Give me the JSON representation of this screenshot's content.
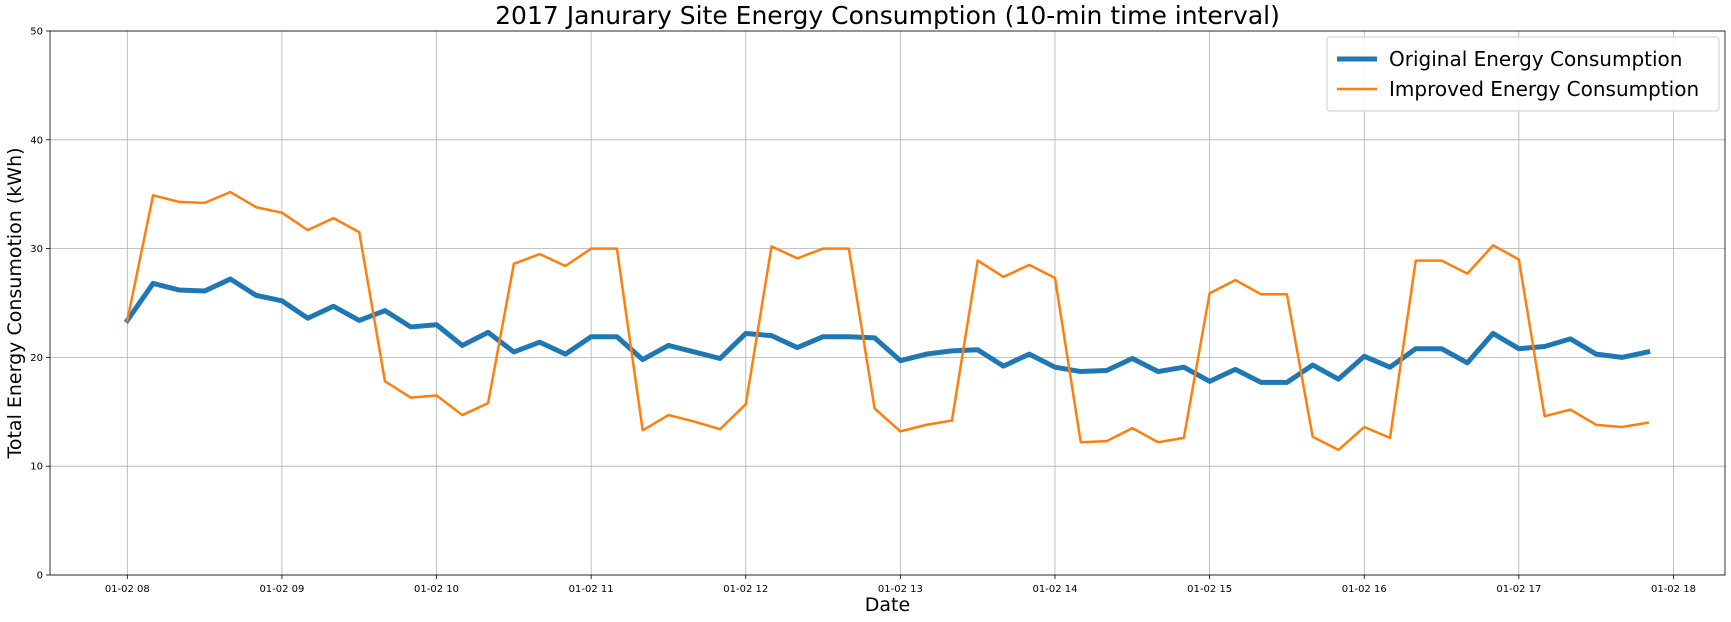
{
  "chart_data": {
    "type": "line",
    "title": "2017 Janurary Site Energy Consumption (10-min time interval)",
    "xlabel": "Date",
    "ylabel": "Total Energy Consumotion (kWh)",
    "ylim": [
      0,
      50
    ],
    "yticks": [
      0,
      10,
      20,
      30,
      40,
      50
    ],
    "xlim": [
      "01-02 07:30",
      "01-02 18:20"
    ],
    "xticks": [
      "01-02 08",
      "01-02 09",
      "01-02 10",
      "01-02 11",
      "01-02 12",
      "01-02 13",
      "01-02 14",
      "01-02 15",
      "01-02 16",
      "01-02 17",
      "01-02 18"
    ],
    "x_interval": "10-min",
    "x": [
      "01-02 08:00",
      "01-02 08:10",
      "01-02 08:20",
      "01-02 08:30",
      "01-02 08:40",
      "01-02 08:50",
      "01-02 09:00",
      "01-02 09:10",
      "01-02 09:20",
      "01-02 09:30",
      "01-02 09:40",
      "01-02 09:50",
      "01-02 10:00",
      "01-02 10:10",
      "01-02 10:20",
      "01-02 10:30",
      "01-02 10:40",
      "01-02 10:50",
      "01-02 11:00",
      "01-02 11:10",
      "01-02 11:20",
      "01-02 11:30",
      "01-02 11:40",
      "01-02 11:50",
      "01-02 12:00",
      "01-02 12:10",
      "01-02 12:20",
      "01-02 12:30",
      "01-02 12:40",
      "01-02 12:50",
      "01-02 13:00",
      "01-02 13:10",
      "01-02 13:20",
      "01-02 13:30",
      "01-02 13:40",
      "01-02 13:50",
      "01-02 14:00",
      "01-02 14:10",
      "01-02 14:20",
      "01-02 14:30",
      "01-02 14:40",
      "01-02 14:50",
      "01-02 15:00",
      "01-02 15:10",
      "01-02 15:20",
      "01-02 15:30",
      "01-02 15:40",
      "01-02 15:50",
      "01-02 16:00",
      "01-02 16:10",
      "01-02 16:20",
      "01-02 16:30",
      "01-02 16:40",
      "01-02 16:50",
      "01-02 17:00",
      "01-02 17:10",
      "01-02 17:20",
      "01-02 17:30",
      "01-02 17:40",
      "01-02 17:50"
    ],
    "grid": true,
    "legend_position": "top-right",
    "series": [
      {
        "name": "Original Energy Consumption",
        "color": "#1f77b4",
        "values": [
          23.4,
          26.8,
          26.2,
          26.1,
          27.2,
          25.7,
          25.2,
          23.6,
          24.7,
          23.4,
          24.3,
          22.8,
          23.0,
          21.1,
          22.3,
          20.5,
          21.4,
          20.3,
          21.9,
          21.9,
          19.8,
          21.1,
          20.5,
          19.9,
          22.2,
          22.0,
          20.9,
          21.9,
          21.9,
          21.8,
          19.7,
          20.3,
          20.6,
          20.7,
          19.2,
          20.3,
          19.1,
          18.7,
          18.8,
          19.9,
          18.7,
          19.1,
          17.8,
          18.9,
          17.7,
          17.7,
          19.3,
          18.0,
          20.1,
          19.1,
          20.8,
          20.8,
          19.5,
          22.2,
          20.8,
          21.0,
          21.7,
          20.3,
          20.0,
          20.5
        ]
      },
      {
        "name": "Improved Energy Consumption",
        "color": "#ff7f0e",
        "values": [
          23.4,
          34.9,
          34.3,
          34.2,
          35.2,
          33.8,
          33.3,
          31.7,
          32.8,
          31.5,
          17.8,
          16.3,
          16.5,
          14.7,
          15.8,
          28.6,
          29.5,
          28.4,
          30.0,
          30.0,
          13.3,
          14.7,
          14.1,
          13.4,
          15.7,
          30.2,
          29.1,
          30.0,
          30.0,
          15.3,
          13.2,
          13.8,
          14.2,
          28.9,
          27.4,
          28.5,
          27.3,
          12.2,
          12.3,
          13.5,
          12.2,
          12.6,
          25.9,
          27.1,
          25.8,
          25.8,
          12.7,
          11.5,
          13.6,
          12.6,
          28.9,
          28.9,
          27.7,
          30.3,
          29.0,
          14.6,
          15.2,
          13.8,
          13.6,
          14.0
        ]
      }
    ]
  }
}
